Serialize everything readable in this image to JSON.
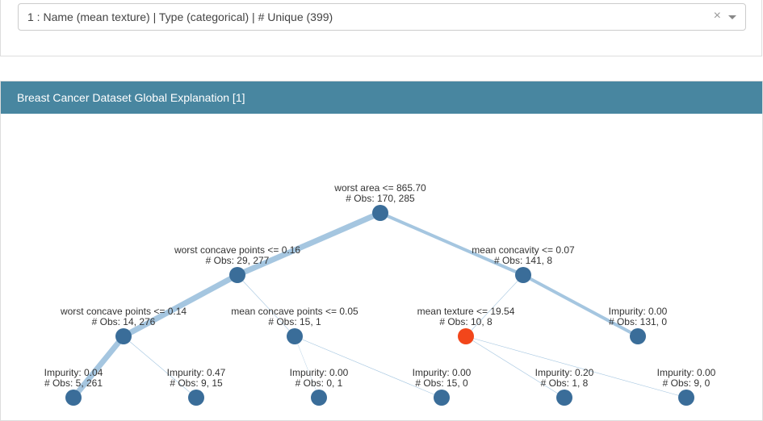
{
  "select": {
    "text": "1 : Name (mean texture) | Type (categorical) | # Unique (399)",
    "clear": "×"
  },
  "panel": {
    "title": "Breast Cancer Dataset Global Explanation [1]"
  },
  "tree": {
    "nodes": [
      {
        "label": "worst area <= 865.70",
        "obs": "# Obs: 170, 285"
      },
      {
        "label": "worst concave points <= 0.16",
        "obs": "# Obs: 29, 277"
      },
      {
        "label": "mean concavity <= 0.07",
        "obs": "# Obs: 141, 8"
      },
      {
        "label": "worst concave points <= 0.14",
        "obs": "# Obs: 14, 276"
      },
      {
        "label": "mean concave points <= 0.05",
        "obs": "# Obs: 15, 1"
      },
      {
        "label": "mean texture <= 19.54",
        "obs": "# Obs: 10, 8"
      },
      {
        "label": "Impurity: 0.00",
        "obs": "# Obs: 131, 0"
      },
      {
        "label": "Impurity: 0.04",
        "obs": "# Obs: 5, 261"
      },
      {
        "label": "Impurity: 0.47",
        "obs": "# Obs: 9, 15"
      },
      {
        "label": "Impurity: 0.00",
        "obs": "# Obs: 0, 1"
      },
      {
        "label": "Impurity: 0.00",
        "obs": "# Obs: 15, 0"
      },
      {
        "label": "Impurity: 0.20",
        "obs": "# Obs: 1, 8"
      },
      {
        "label": "Impurity: 0.00",
        "obs": "# Obs: 9, 0"
      }
    ]
  }
}
